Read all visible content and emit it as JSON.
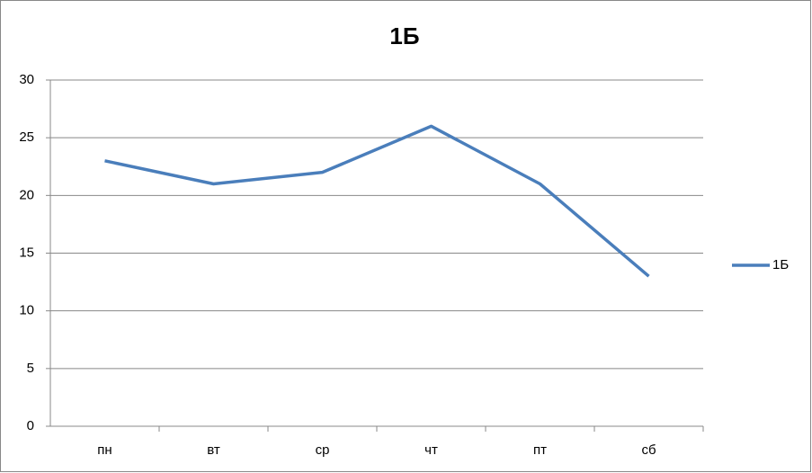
{
  "chart_data": {
    "type": "line",
    "title": "1Б",
    "categories": [
      "пн",
      "вт",
      "ср",
      "чт",
      "пт",
      "сб"
    ],
    "series": [
      {
        "name": "1Б",
        "color": "#4a7ebb",
        "values": [
          23,
          21,
          22,
          26,
          21,
          13
        ]
      }
    ],
    "ylim": [
      0,
      30
    ],
    "yticks": [
      0,
      5,
      10,
      15,
      20,
      25,
      30
    ],
    "grid": true,
    "legend": "right"
  }
}
